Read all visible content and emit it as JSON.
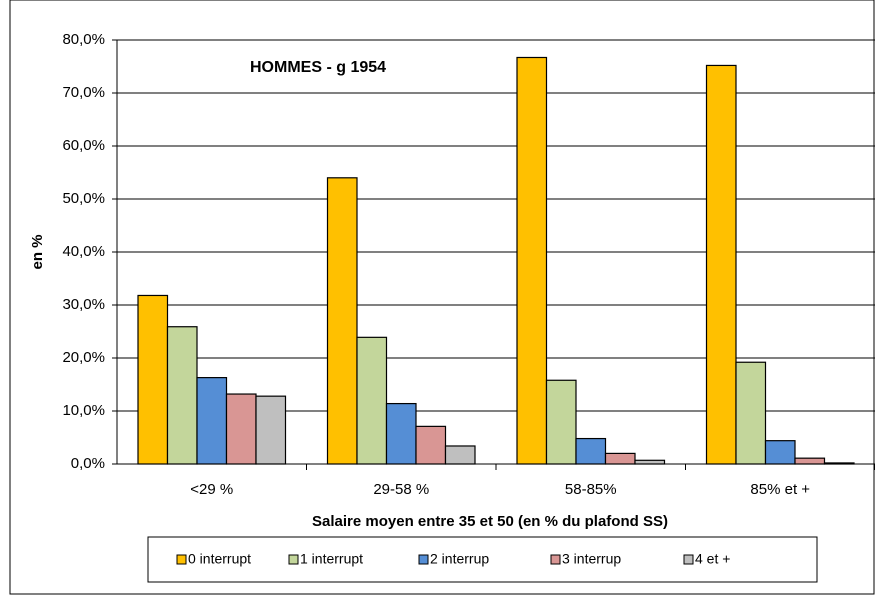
{
  "chart_data": {
    "type": "bar",
    "annotation": "HOMMES - g 1954",
    "xlabel": "Salaire moyen entre 35 et 50 (en % du plafond SS)",
    "ylabel": "en %",
    "categories": [
      "<29 %",
      "29-58 %",
      "58-85%",
      "85% et +"
    ],
    "series": [
      {
        "name": "0 interrupt",
        "color": "#FFC000",
        "values": [
          31.8,
          54.0,
          76.7,
          75.2
        ]
      },
      {
        "name": "1 interrupt",
        "color": "#C3D69B",
        "values": [
          25.9,
          23.9,
          15.8,
          19.2
        ]
      },
      {
        "name": "2 interrup",
        "color": "#558ED5",
        "values": [
          16.3,
          11.4,
          4.8,
          4.4
        ]
      },
      {
        "name": "3 interrup",
        "color": "#D99694",
        "values": [
          13.2,
          7.1,
          2.0,
          1.1
        ]
      },
      {
        "name": "4 et +",
        "color": "#BFBFBF",
        "values": [
          12.8,
          3.4,
          0.7,
          0.2
        ]
      }
    ],
    "ylim": [
      0,
      80
    ],
    "yticks": [
      {
        "value": 0,
        "label": "0,0%"
      },
      {
        "value": 10,
        "label": "10,0%"
      },
      {
        "value": 20,
        "label": "20,0%"
      },
      {
        "value": 30,
        "label": "30,0%"
      },
      {
        "value": 40,
        "label": "40,0%"
      },
      {
        "value": 50,
        "label": "50,0%"
      },
      {
        "value": 60,
        "label": "60,0%"
      },
      {
        "value": 70,
        "label": "70,0%"
      },
      {
        "value": 80,
        "label": "80,0%"
      }
    ],
    "grid": true
  }
}
